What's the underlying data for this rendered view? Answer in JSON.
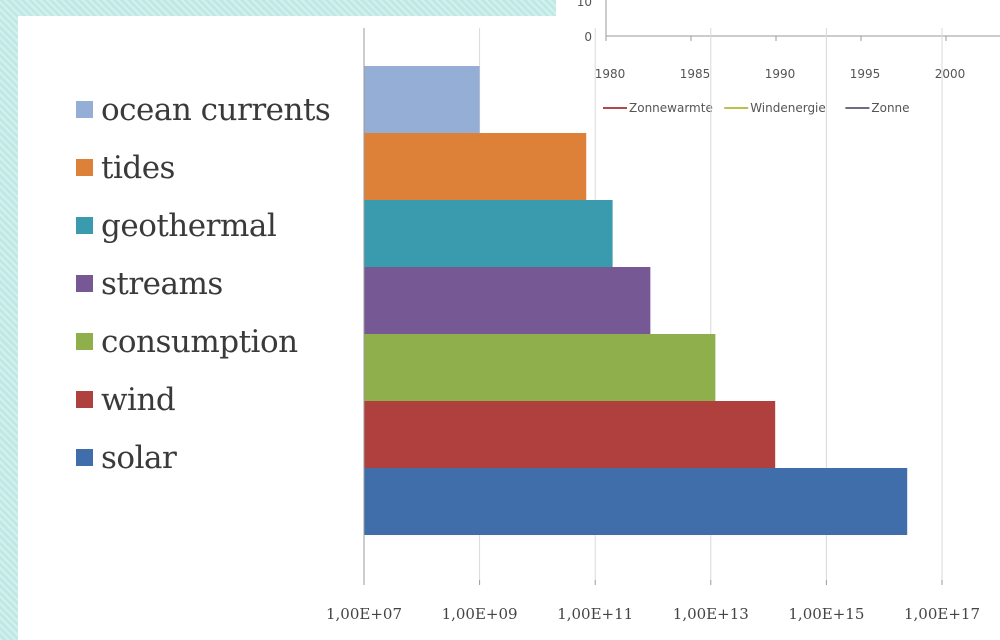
{
  "chart_data": {
    "type": "bar",
    "orientation": "horizontal",
    "scale": "log",
    "categories": [
      "ocean currents",
      "tides",
      "geothermal",
      "streams",
      "consumption",
      "wind",
      "solar"
    ],
    "values": [
      1000000000.0,
      70000000000.0,
      200000000000.0,
      900000000000.0,
      12000000000000.0,
      130000000000000.0,
      2.5e+16
    ],
    "colors": [
      "#95aed6",
      "#de8138",
      "#3a9bae",
      "#765894",
      "#8eaf4b",
      "#b0403e",
      "#3f6eab"
    ],
    "xlim": [
      10000000.0,
      1e+17
    ],
    "xticks": [
      {
        "value": 10000000.0,
        "label": "1,00E+07"
      },
      {
        "value": 1000000000.0,
        "label": "1,00E+09"
      },
      {
        "value": 100000000000.0,
        "label": "1,00E+11"
      },
      {
        "value": 10000000000000.0,
        "label": "1,00E+13"
      },
      {
        "value": 1000000000000000.0,
        "label": "1,00E+15"
      },
      {
        "value": 1e+17,
        "label": "1,00E+17"
      }
    ],
    "grid": true,
    "legend": "left"
  },
  "inset_chart": {
    "type": "line",
    "y_tick_labels": [
      "10",
      "0"
    ],
    "x_tick_labels": [
      "1980",
      "1985",
      "1990",
      "1995",
      "2000"
    ],
    "legend": [
      {
        "name": "Zonnewarmte",
        "color": "#b04a4a"
      },
      {
        "name": "Windenergie",
        "color": "#b9c34a"
      },
      {
        "name": "Zonne",
        "color": "#6d6d86"
      }
    ]
  }
}
